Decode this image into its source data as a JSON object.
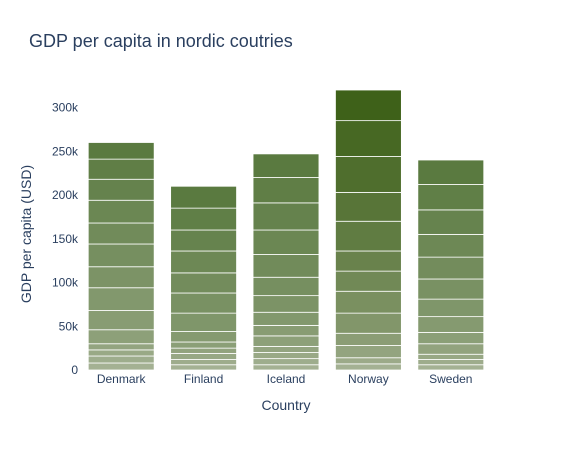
{
  "chart_data": {
    "type": "bar",
    "title": "GDP per capita in nordic coutries",
    "xlabel": "Country",
    "ylabel": "GDP per capita (USD)",
    "ylim": [
      0,
      320000
    ],
    "yticks": [
      0,
      50000,
      100000,
      150000,
      200000,
      250000,
      300000
    ],
    "ytick_labels": [
      "0",
      "50k",
      "100k",
      "150k",
      "200k",
      "250k",
      "300k"
    ],
    "categories": [
      "Denmark",
      "Finland",
      "Iceland",
      "Norway",
      "Sweden"
    ],
    "values": [
      260000,
      210000,
      247000,
      320000,
      240000
    ],
    "segments": [
      [
        8000,
        8000,
        7000,
        7000,
        16000,
        22000,
        26000,
        24000,
        26000,
        24000,
        26000,
        24000,
        23000,
        19000
      ],
      [
        6000,
        6000,
        7000,
        6000,
        7000,
        12000,
        21000,
        23000,
        23000,
        25000,
        24000,
        25000,
        25000
      ],
      [
        6000,
        7000,
        7000,
        7000,
        12000,
        12000,
        15000,
        19000,
        21000,
        26000,
        28000,
        31000,
        29000,
        27000
      ],
      [
        7000,
        7000,
        14000,
        14000,
        23000,
        25000,
        23000,
        23000,
        34000,
        33000,
        41000,
        41000,
        35000
      ],
      [
        6000,
        6000,
        6000,
        12000,
        13000,
        18000,
        20000,
        23000,
        25000,
        26000,
        28000,
        29000,
        28000
      ]
    ],
    "colors": {
      "base_light": "#a4b193",
      "dark": "#5a7a40",
      "norway_dark": "#3e6119",
      "text": "#2a3f5f"
    },
    "grid": false,
    "legend": "none"
  }
}
